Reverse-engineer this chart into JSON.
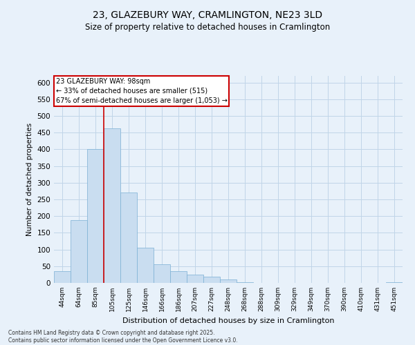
{
  "title_line1": "23, GLAZEBURY WAY, CRAMLINGTON, NE23 3LD",
  "title_line2": "Size of property relative to detached houses in Cramlington",
  "xlabel": "Distribution of detached houses by size in Cramlington",
  "ylabel": "Number of detached properties",
  "bin_labels": [
    "44sqm",
    "64sqm",
    "85sqm",
    "105sqm",
    "125sqm",
    "146sqm",
    "166sqm",
    "186sqm",
    "207sqm",
    "227sqm",
    "248sqm",
    "268sqm",
    "288sqm",
    "309sqm",
    "329sqm",
    "349sqm",
    "370sqm",
    "390sqm",
    "410sqm",
    "431sqm",
    "451sqm"
  ],
  "bar_values": [
    35,
    188,
    400,
    462,
    270,
    105,
    55,
    35,
    25,
    18,
    10,
    2,
    1,
    0,
    0,
    0,
    0,
    0,
    0,
    0,
    2
  ],
  "bar_color": "#c9ddf0",
  "bar_edge_color": "#7aafd4",
  "grid_color": "#c0d5e8",
  "bg_color": "#e8f1fa",
  "vline_x_index": 2.5,
  "annotation_title": "23 GLAZEBURY WAY: 98sqm",
  "annotation_line1": "← 33% of detached houses are smaller (515)",
  "annotation_line2": "67% of semi-detached houses are larger (1,053) →",
  "annotation_box_facecolor": "#ffffff",
  "annotation_border_color": "#cc0000",
  "vline_color": "#cc0000",
  "footer_line1": "Contains HM Land Registry data © Crown copyright and database right 2025.",
  "footer_line2": "Contains public sector information licensed under the Open Government Licence v3.0.",
  "ylim": [
    0,
    620
  ],
  "yticks": [
    0,
    50,
    100,
    150,
    200,
    250,
    300,
    350,
    400,
    450,
    500,
    550,
    600
  ]
}
